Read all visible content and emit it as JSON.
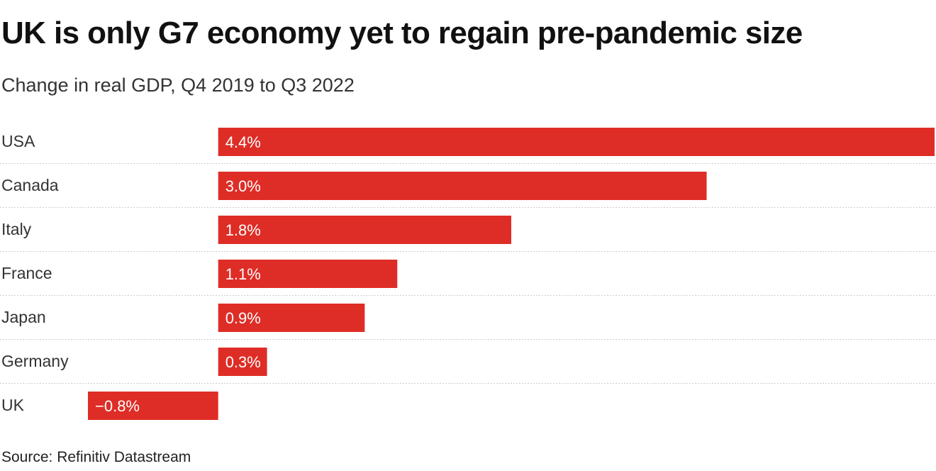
{
  "title": "UK is only G7 economy yet to regain pre-pandemic size",
  "subtitle": "Change in real GDP, Q4 2019 to Q3 2022",
  "source": "Source: Refinitiv Datastream",
  "colors": {
    "bar": "#DE2D26",
    "bar_label": "#FFFFFF",
    "category_label": "#333333",
    "row_divider": "#CCCCCC"
  },
  "chart_data": {
    "type": "bar",
    "orientation": "horizontal",
    "title": "UK is only G7 economy yet to regain pre-pandemic size",
    "subtitle": "Change in real GDP, Q4 2019 to Q3 2022",
    "xlabel": "",
    "ylabel": "",
    "unit": "%",
    "grid": false,
    "categories": [
      "USA",
      "Canada",
      "Italy",
      "France",
      "Japan",
      "Germany",
      "UK"
    ],
    "values": [
      4.4,
      3.0,
      1.8,
      1.1,
      0.9,
      0.3,
      -0.8
    ],
    "value_labels": [
      "4.4%",
      "3.0%",
      "1.8%",
      "1.1%",
      "0.9%",
      "0.3%",
      "−0.8%"
    ],
    "xlim": [
      -0.8,
      4.4
    ]
  }
}
